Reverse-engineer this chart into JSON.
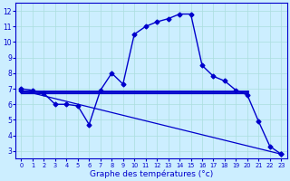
{
  "xlabel": "Graphe des températures (°c)",
  "bg_color": "#cceeff",
  "line_color": "#0000cc",
  "hours": [
    0,
    1,
    2,
    3,
    4,
    5,
    6,
    7,
    8,
    9,
    10,
    11,
    12,
    13,
    14,
    15,
    16,
    17,
    18,
    19,
    20,
    21,
    22,
    23
  ],
  "temp_curve": [
    7.0,
    6.9,
    6.7,
    6.0,
    6.0,
    5.9,
    4.7,
    6.9,
    8.0,
    7.3,
    10.5,
    11.0,
    11.3,
    11.5,
    11.8,
    11.8,
    8.5,
    7.8,
    7.5,
    6.9,
    6.6,
    4.9,
    3.3,
    2.8
  ],
  "flat_line_y": 6.85,
  "flat_line_x_start": 0,
  "flat_line_x_end": 20,
  "flat_line2_y": 6.7,
  "flat_line2_x_start": 0,
  "flat_line2_x_end": 20,
  "decline_x": [
    0,
    23
  ],
  "decline_y": [
    6.9,
    2.8
  ],
  "ylim": [
    2.5,
    12.5
  ],
  "xlim": [
    -0.5,
    23.5
  ],
  "yticks": [
    3,
    4,
    5,
    6,
    7,
    8,
    9,
    10,
    11,
    12
  ],
  "xticks": [
    0,
    1,
    2,
    3,
    4,
    5,
    6,
    7,
    8,
    9,
    10,
    11,
    12,
    13,
    14,
    15,
    16,
    17,
    18,
    19,
    20,
    21,
    22,
    23
  ],
  "grid_color": "#aadddd",
  "marker_style": "D",
  "marker_size": 2.5
}
